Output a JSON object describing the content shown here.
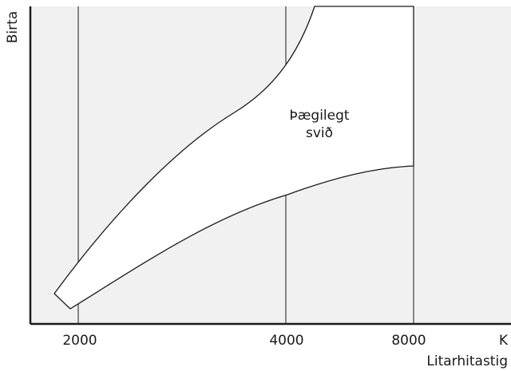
{
  "diagram": {
    "y_axis_label": "Birta",
    "x_axis_label": "Litarhitastig",
    "x_unit": "K",
    "x_ticks": [
      {
        "label": "2000"
      },
      {
        "label": "4000"
      },
      {
        "label": "8000"
      }
    ],
    "region_label_line1": "Þægilegt",
    "region_label_line2": "svið"
  },
  "colors": {
    "plot_background": "#f1f1f1",
    "region_fill": "#ffffff",
    "line": "#1a1a1a"
  }
}
